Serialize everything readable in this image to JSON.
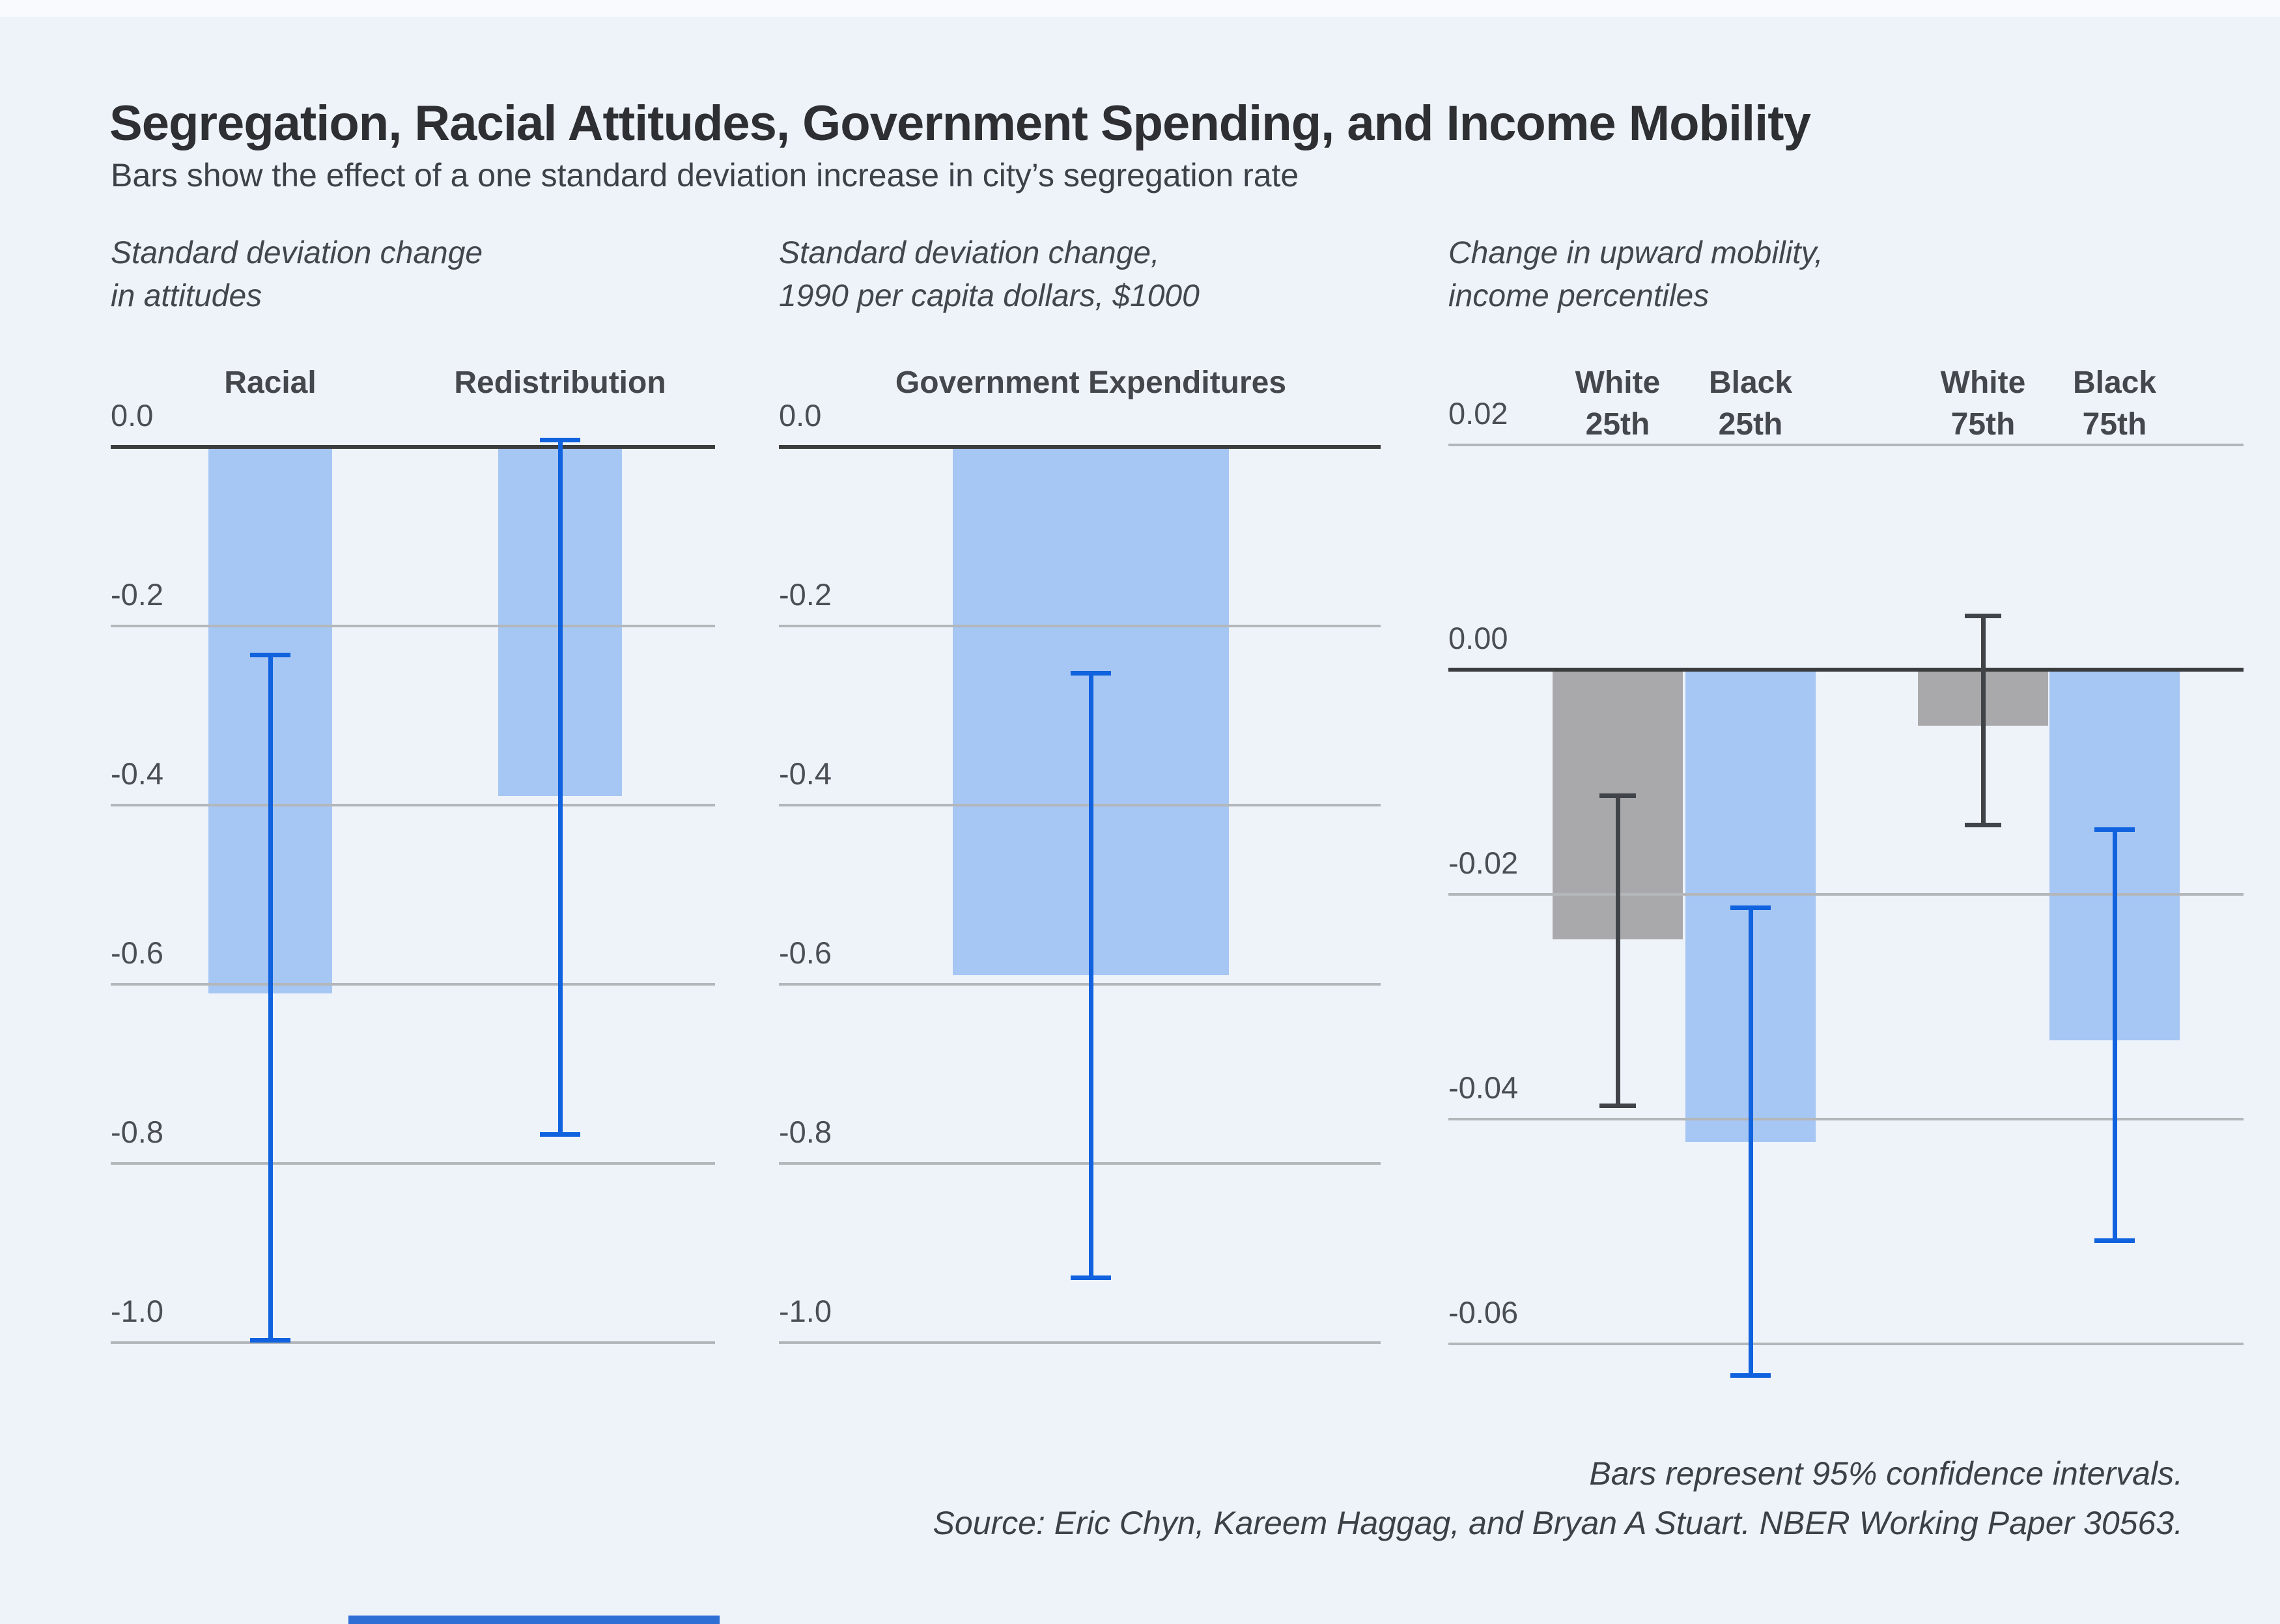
{
  "header": {
    "title": "Segregation, Racial Attitudes, Government Spending, and Income Mobility",
    "subtitle": "Bars show the effect of a one standard deviation increase in city’s segregation rate"
  },
  "footer": {
    "note": "Bars represent 95% confidence intervals.",
    "source": "Source: Eric Chyn, Kareem Haggag, and Bryan A Stuart. NBER Working Paper 30563."
  },
  "colors": {
    "background": "#eef3fa",
    "bar_blue": "#a6c6f3",
    "bar_gray": "#a9a9ab",
    "ci_blue": "#1062de",
    "ci_dark": "#404448",
    "gridline": "#b4b7ba",
    "zero_line": "#3a3c3e",
    "title_text": "#2d2f33",
    "body_text": "#3c4147"
  },
  "chart_data": [
    {
      "type": "bar",
      "title_lines": [
        "Standard deviation change",
        "in attitudes"
      ],
      "categories": [
        "Racial",
        "Redistribution"
      ],
      "categories_lines": [
        [
          "Racial"
        ],
        [
          "Redistribution"
        ]
      ],
      "values": [
        -0.61,
        -0.39
      ],
      "ci_high": [
        -0.23,
        0.01
      ],
      "ci_low": [
        -1.0,
        -0.77
      ],
      "bar_styles": [
        "blue",
        "blue"
      ],
      "axis": {
        "tick_values": [
          0.0,
          -0.2,
          -0.4,
          -0.6,
          -0.8,
          -1.0
        ],
        "tick_labels": [
          "0.0",
          "-0.2",
          "-0.4",
          "-0.6",
          "-0.8",
          "-1.0"
        ],
        "ylim": [
          0.05,
          -1.05
        ],
        "grid": true
      },
      "legend": "none"
    },
    {
      "type": "bar",
      "title_lines": [
        "Standard deviation change,",
        "1990 per capita dollars, $1000"
      ],
      "categories": [
        "Government Expenditures"
      ],
      "categories_lines": [
        [
          "Government Expenditures"
        ]
      ],
      "values": [
        -0.59
      ],
      "ci_high": [
        -0.25
      ],
      "ci_low": [
        -0.93
      ],
      "bar_styles": [
        "blue"
      ],
      "axis": {
        "tick_values": [
          0.0,
          -0.2,
          -0.4,
          -0.6,
          -0.8,
          -1.0
        ],
        "tick_labels": [
          "0.0",
          "-0.2",
          "-0.4",
          "-0.6",
          "-0.8",
          "-1.0"
        ],
        "ylim": [
          0.05,
          -1.05
        ],
        "grid": true
      },
      "legend": "none"
    },
    {
      "type": "bar",
      "title_lines": [
        "Change in upward mobility,",
        "income percentiles"
      ],
      "categories": [
        "White 25th",
        "Black 25th",
        "White 75th",
        "Black 75th"
      ],
      "categories_lines": [
        [
          "White",
          "25th"
        ],
        [
          "Black",
          "25th"
        ],
        [
          "White",
          "75th"
        ],
        [
          "Black",
          "75th"
        ]
      ],
      "values": [
        -0.024,
        -0.042,
        -0.005,
        -0.033
      ],
      "ci_high": [
        -0.011,
        -0.021,
        0.005,
        -0.014
      ],
      "ci_low": [
        -0.039,
        -0.063,
        -0.014,
        -0.051
      ],
      "bar_styles": [
        "gray",
        "blue",
        "gray",
        "blue"
      ],
      "axis": {
        "tick_values": [
          0.02,
          0.0,
          -0.02,
          -0.04,
          -0.06
        ],
        "tick_labels": [
          "0.02",
          "0.00",
          "-0.02",
          "-0.04",
          "-0.06"
        ],
        "ylim": [
          0.025,
          -0.065
        ],
        "grid": true
      },
      "legend": "none"
    }
  ]
}
